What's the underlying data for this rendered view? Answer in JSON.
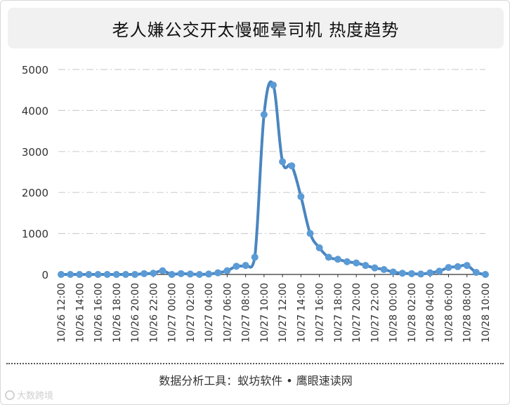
{
  "header": {
    "title": "老人嫌公交开太慢砸晕司机 热度趋势"
  },
  "footer": {
    "source": "数据分析工具：蚁坊软件 • 鹰眼速读网"
  },
  "watermark": {
    "text": "大数跨境"
  },
  "colors": {
    "line": "#4a86c0",
    "point": "#5b9bd5",
    "grid": "#d0d0d0",
    "axis": "#333333",
    "title_bg": "#f1f1f1"
  },
  "chart_data": {
    "type": "line",
    "title": "老人嫌公交开太慢砸晕司机 热度趋势",
    "xlabel": "",
    "ylabel": "",
    "ylim": [
      0,
      5000
    ],
    "yticks": [
      0,
      1000,
      2000,
      3000,
      4000,
      5000
    ],
    "grid": true,
    "legend": "none",
    "x_tick_labels": [
      "10/26 12:00",
      "10/26 14:00",
      "10/26 16:00",
      "10/26 18:00",
      "10/26 20:00",
      "10/26 22:00",
      "10/27 00:00",
      "10/27 02:00",
      "10/27 04:00",
      "10/27 06:00",
      "10/27 08:00",
      "10/27 10:00",
      "10/27 12:00",
      "10/27 14:00",
      "10/27 16:00",
      "10/27 18:00",
      "10/27 20:00",
      "10/27 22:00",
      "10/28 00:00",
      "10/28 02:00",
      "10/28 04:00",
      "10/28 06:00",
      "10/28 08:00",
      "10/28 10:00"
    ],
    "x": [
      "10/26 12:00",
      "10/26 13:00",
      "10/26 14:00",
      "10/26 15:00",
      "10/26 16:00",
      "10/26 17:00",
      "10/26 18:00",
      "10/26 19:00",
      "10/26 20:00",
      "10/26 21:00",
      "10/26 22:00",
      "10/26 23:00",
      "10/27 00:00",
      "10/27 01:00",
      "10/27 02:00",
      "10/27 03:00",
      "10/27 04:00",
      "10/27 05:00",
      "10/27 06:00",
      "10/27 07:00",
      "10/27 08:00",
      "10/27 09:00",
      "10/27 10:00",
      "10/27 11:00",
      "10/27 12:00",
      "10/27 13:00",
      "10/27 14:00",
      "10/27 15:00",
      "10/27 16:00",
      "10/27 17:00",
      "10/27 18:00",
      "10/27 19:00",
      "10/27 20:00",
      "10/27 21:00",
      "10/27 22:00",
      "10/27 23:00",
      "10/28 00:00",
      "10/28 01:00",
      "10/28 02:00",
      "10/28 03:00",
      "10/28 04:00",
      "10/28 05:00",
      "10/28 06:00",
      "10/28 07:00",
      "10/28 08:00",
      "10/28 09:00",
      "10/28 10:00"
    ],
    "series": [
      {
        "values": [
          0,
          0,
          0,
          0,
          0,
          0,
          0,
          0,
          0,
          20,
          30,
          90,
          0,
          20,
          10,
          0,
          10,
          40,
          90,
          200,
          220,
          420,
          3900,
          4620,
          2750,
          2650,
          1900,
          1000,
          650,
          420,
          370,
          310,
          280,
          220,
          160,
          120,
          60,
          30,
          20,
          10,
          40,
          80,
          170,
          190,
          220,
          50,
          0
        ]
      }
    ]
  }
}
